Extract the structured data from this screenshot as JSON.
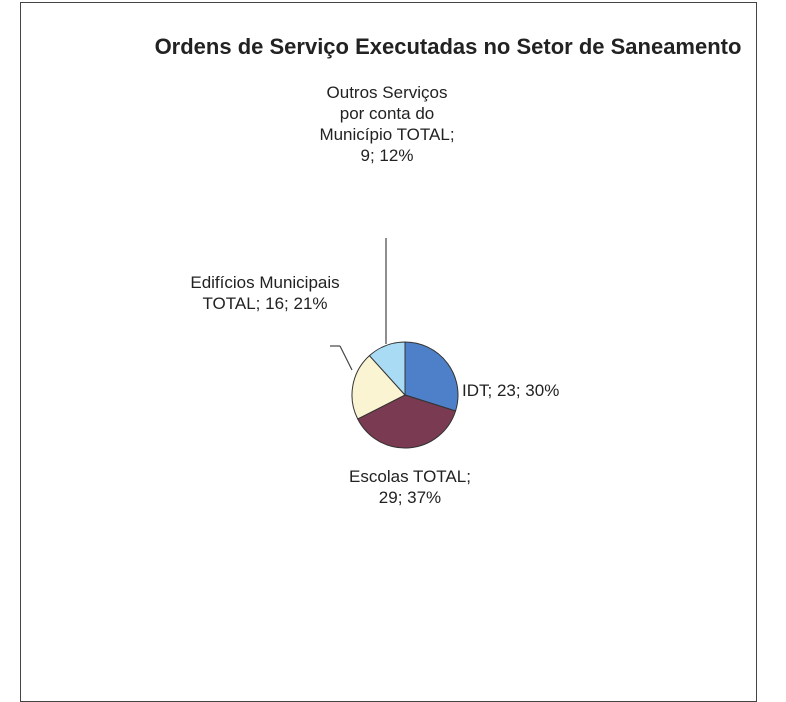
{
  "chart_data": {
    "type": "pie",
    "title": "Ordens de Serviço Executadas no Setor de Saneamento",
    "values": [
      23,
      29,
      16,
      9
    ],
    "value_labels": [
      "IDT; 23; 30%",
      "Escolas TOTAL; 29; 37%",
      "Edifícios Municipais TOTAL; 16; 21%",
      "Outros Serviços por conta do Município TOTAL; 9; 12%"
    ],
    "colors": [
      "#4d80c8",
      "#7a3a52",
      "#fbf4d2",
      "#a9dcf4"
    ]
  }
}
